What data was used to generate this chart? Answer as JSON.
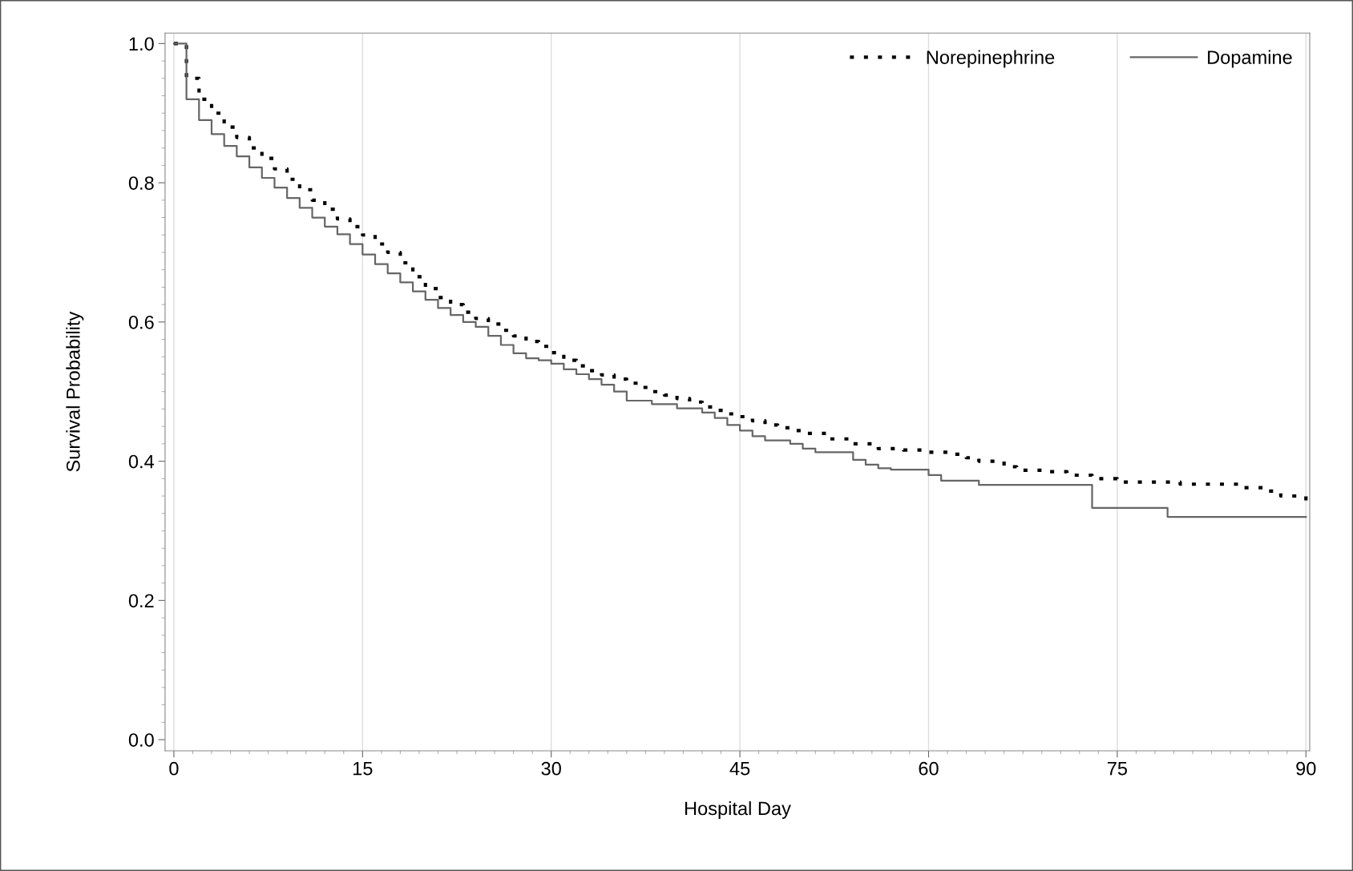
{
  "chart_data": {
    "type": "step",
    "xlabel": "Hospital Day",
    "ylabel": "Survival Probability",
    "xlim": [
      -0.7,
      90.3
    ],
    "xticks": [
      0,
      15,
      30,
      45,
      60,
      75,
      90
    ],
    "ylim": [
      -0.016,
      1.015
    ],
    "yticks": [
      {
        "value": 0,
        "label": "0.0"
      },
      {
        "value": 0.2,
        "label": "0.2"
      },
      {
        "value": 0.4,
        "label": "0.4"
      },
      {
        "value": 0.6,
        "label": "0.6"
      },
      {
        "value": 0.8,
        "label": "0.8"
      },
      {
        "value": 1,
        "label": "1.0"
      }
    ],
    "grid": "x",
    "legend": "top right",
    "series": [
      {
        "name": "Norepinephrine",
        "color": "#000000",
        "line_style": "dotted",
        "x": [
          0,
          1,
          2,
          3,
          4,
          5,
          6,
          7,
          8,
          9,
          10,
          11,
          12,
          13,
          14,
          15,
          16,
          17,
          18,
          19,
          20,
          21,
          22,
          23,
          24,
          25,
          26,
          27,
          28,
          29,
          30,
          31,
          32,
          33,
          34,
          35,
          36,
          37,
          38,
          39,
          40,
          41,
          42,
          43,
          44,
          45,
          46,
          47,
          48,
          49,
          50,
          52,
          54,
          56,
          58,
          60,
          62,
          63,
          64,
          66,
          67,
          69,
          71,
          73,
          75,
          80,
          85,
          87,
          88,
          90
        ],
        "values": [
          1.0,
          0.95,
          0.92,
          0.9,
          0.88,
          0.865,
          0.85,
          0.835,
          0.82,
          0.805,
          0.79,
          0.775,
          0.762,
          0.748,
          0.737,
          0.725,
          0.712,
          0.7,
          0.685,
          0.665,
          0.648,
          0.635,
          0.625,
          0.614,
          0.605,
          0.597,
          0.588,
          0.58,
          0.572,
          0.565,
          0.556,
          0.545,
          0.537,
          0.53,
          0.524,
          0.518,
          0.512,
          0.506,
          0.5,
          0.495,
          0.49,
          0.485,
          0.478,
          0.473,
          0.468,
          0.464,
          0.458,
          0.452,
          0.448,
          0.444,
          0.44,
          0.432,
          0.425,
          0.418,
          0.416,
          0.413,
          0.41,
          0.405,
          0.4,
          0.392,
          0.387,
          0.385,
          0.38,
          0.375,
          0.37,
          0.367,
          0.362,
          0.357,
          0.35,
          0.34
        ]
      },
      {
        "name": "Dopamine",
        "color": "#666666",
        "line_style": "solid",
        "x": [
          0,
          1,
          2,
          3,
          4,
          5,
          6,
          7,
          8,
          9,
          10,
          11,
          12,
          13,
          14,
          15,
          16,
          17,
          18,
          19,
          20,
          21,
          22,
          23,
          24,
          25,
          26,
          27,
          28,
          29,
          30,
          31,
          32,
          33,
          34,
          35,
          36,
          38,
          40,
          42,
          43,
          44,
          45,
          46,
          47,
          49,
          50,
          51,
          54,
          55,
          56,
          57,
          60,
          61,
          64,
          73,
          79,
          90
        ],
        "values": [
          1.0,
          0.92,
          0.89,
          0.87,
          0.853,
          0.838,
          0.822,
          0.807,
          0.793,
          0.778,
          0.764,
          0.75,
          0.737,
          0.726,
          0.712,
          0.697,
          0.683,
          0.67,
          0.657,
          0.644,
          0.632,
          0.62,
          0.61,
          0.6,
          0.593,
          0.58,
          0.567,
          0.555,
          0.548,
          0.545,
          0.54,
          0.532,
          0.525,
          0.518,
          0.51,
          0.5,
          0.487,
          0.482,
          0.476,
          0.47,
          0.462,
          0.452,
          0.444,
          0.436,
          0.43,
          0.425,
          0.418,
          0.413,
          0.402,
          0.395,
          0.39,
          0.388,
          0.38,
          0.372,
          0.366,
          0.333,
          0.32,
          0.32
        ]
      }
    ]
  }
}
